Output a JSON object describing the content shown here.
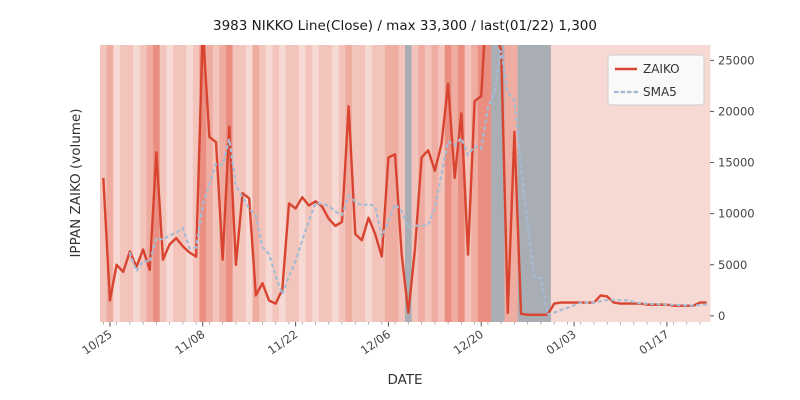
{
  "chart_data": {
    "type": "line",
    "title": "3983 NIKKO Line(Close) / max 33,300 / last(01/22) 1,300",
    "xlabel": "DATE",
    "ylabel": "IPPAN ZAIKO (volume)",
    "ylim": [
      -600,
      26500
    ],
    "yticks": [
      0,
      5000,
      10000,
      15000,
      20000,
      25000
    ],
    "n_points": 92,
    "x_tick_labels": [
      "10/25",
      "11/08",
      "11/22",
      "12/06",
      "12/20",
      "01/03",
      "01/17"
    ],
    "x_tick_indices": [
      1,
      15,
      29,
      43,
      57,
      71,
      85
    ],
    "grid": false,
    "legend_position": "upper right",
    "max_value": 33300,
    "last_value": 1300,
    "series": [
      {
        "name": "ZAIKO",
        "style": "solid",
        "color": "#d8442f",
        "values": [
          13500,
          1500,
          5000,
          4300,
          6300,
          4800,
          6500,
          4500,
          16000,
          5500,
          7000,
          7600,
          6800,
          6200,
          5800,
          28000,
          17500,
          17000,
          5500,
          18500,
          5000,
          12000,
          11500,
          2000,
          3200,
          1500,
          1200,
          2600,
          11000,
          10500,
          11600,
          10800,
          11200,
          10700,
          9500,
          8800,
          9200,
          20500,
          8000,
          7400,
          9600,
          8000,
          5800,
          15500,
          15800,
          6000,
          300,
          6500,
          15500,
          16200,
          14200,
          16800,
          22700,
          13500,
          19800,
          6000,
          21000,
          21500,
          33300,
          28000,
          26000,
          300,
          18000,
          200,
          100,
          100,
          100,
          100,
          1200,
          1300,
          1300,
          1300,
          1300,
          1300,
          1300,
          2000,
          1900,
          1300,
          1200,
          1200,
          1200,
          1200,
          1100,
          1100,
          1100,
          1100,
          1000,
          1000,
          1000,
          1000,
          1300,
          1300
        ]
      },
      {
        "name": "SMA5",
        "style": "dotted",
        "color": "#a5bcd4",
        "derived_from": "5-day moving average of ZAIKO"
      }
    ],
    "band_palette": {
      "0": "#fae7e3",
      "1": "#f7d9d4",
      "2": "#f3c4bc",
      "3": "#efaca1",
      "4": "#e98e80",
      "g": "#a9aeb5"
    },
    "band_levels": [
      "2",
      "3",
      "1",
      "2",
      "2",
      "1",
      "2",
      "3",
      "4",
      "2",
      "1",
      "2",
      "2",
      "1",
      "2",
      "4",
      "3",
      "2",
      "3",
      "4",
      "2",
      "2",
      "1",
      "3",
      "2",
      "1",
      "2",
      "1",
      "2",
      "2",
      "1",
      "2",
      "1",
      "2",
      "2",
      "1",
      "2",
      "3",
      "2",
      "2",
      "1",
      "2",
      "2",
      "3",
      "3",
      "2",
      "g",
      "2",
      "3",
      "2",
      "3",
      "2",
      "4",
      "3",
      "4",
      "2",
      "3",
      "4",
      "4",
      "g",
      "g",
      "3",
      "3",
      "g",
      "g",
      "g",
      "g",
      "g",
      "1",
      "1",
      "1",
      "1",
      "1",
      "1",
      "1",
      "1",
      "1",
      "1",
      "1",
      "1",
      "1",
      "1",
      "1",
      "1",
      "1",
      "1",
      "1",
      "1",
      "1",
      "1",
      "1",
      "1"
    ]
  }
}
